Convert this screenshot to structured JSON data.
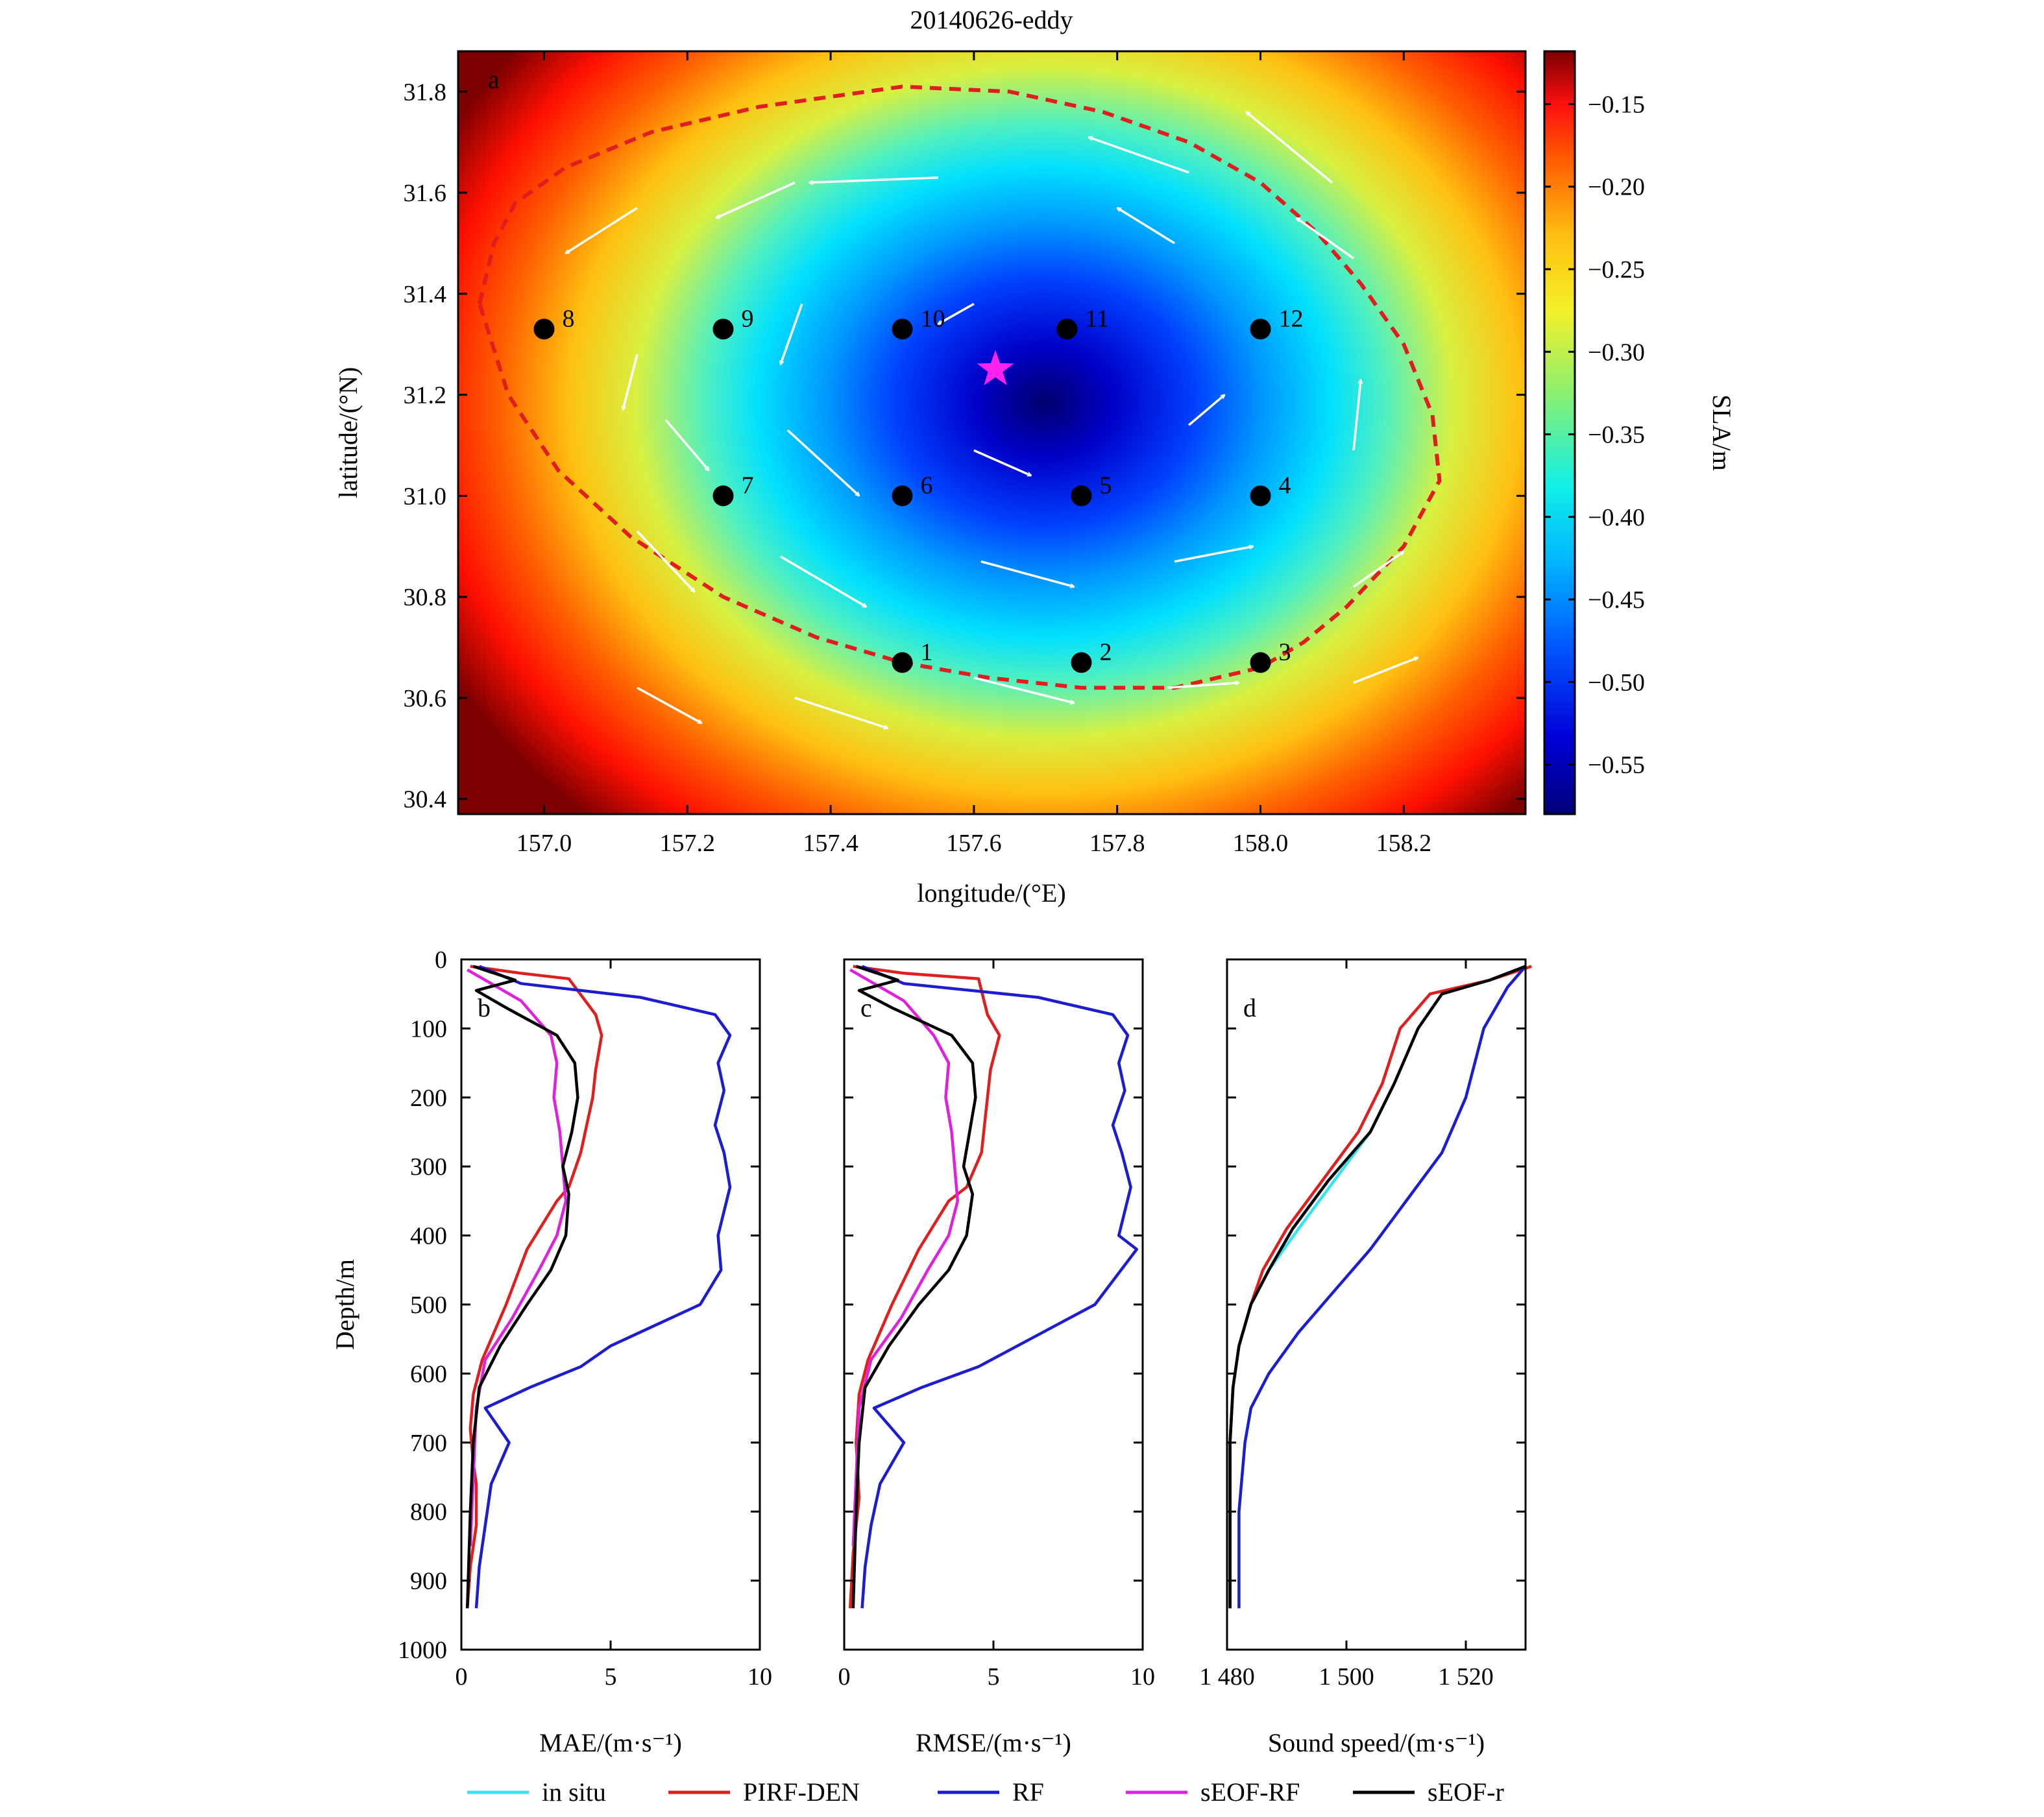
{
  "figure": {
    "title": "20140626-eddy"
  },
  "map": {
    "panel_label": "a",
    "xlabel": "longitude/(°E)",
    "ylabel": "latitude/(°N)",
    "xlim": [
      156.88,
      158.37
    ],
    "ylim": [
      30.37,
      31.88
    ],
    "xticks": [
      157.0,
      157.2,
      157.4,
      157.6,
      157.8,
      158.0,
      158.2
    ],
    "xtick_labels": [
      "157.0",
      "157.2",
      "157.4",
      "157.6",
      "157.8",
      "158.0",
      "158.2"
    ],
    "yticks": [
      30.4,
      30.6,
      30.8,
      31.0,
      31.2,
      31.4,
      31.6,
      31.8
    ],
    "ytick_labels": [
      "30.4",
      "30.6",
      "30.8",
      "31.0",
      "31.2",
      "31.4",
      "31.6",
      "31.8"
    ],
    "eddy_center": {
      "lon": 157.63,
      "lat": 31.25
    },
    "eddy_center_color": "#ff22ee",
    "eddy_boundary_color": "#e01e1e",
    "eddy_boundary": [
      [
        156.91,
        31.38
      ],
      [
        156.93,
        31.5
      ],
      [
        156.96,
        31.58
      ],
      [
        157.03,
        31.65
      ],
      [
        157.15,
        31.72
      ],
      [
        157.3,
        31.77
      ],
      [
        157.5,
        31.81
      ],
      [
        157.65,
        31.8
      ],
      [
        157.78,
        31.76
      ],
      [
        157.9,
        31.7
      ],
      [
        158.0,
        31.62
      ],
      [
        158.08,
        31.52
      ],
      [
        158.14,
        31.42
      ],
      [
        158.2,
        31.3
      ],
      [
        158.24,
        31.16
      ],
      [
        158.25,
        31.03
      ],
      [
        158.2,
        30.9
      ],
      [
        158.12,
        30.78
      ],
      [
        158.06,
        30.71
      ],
      [
        158.0,
        30.66
      ],
      [
        157.88,
        30.62
      ],
      [
        157.75,
        30.62
      ],
      [
        157.62,
        30.64
      ],
      [
        157.5,
        30.67
      ],
      [
        157.38,
        30.72
      ],
      [
        157.25,
        30.8
      ],
      [
        157.12,
        30.92
      ],
      [
        157.02,
        31.05
      ],
      [
        156.95,
        31.2
      ],
      [
        156.91,
        31.38
      ]
    ],
    "stations": [
      {
        "label": "1",
        "lon": 157.5,
        "lat": 30.67
      },
      {
        "label": "2",
        "lon": 157.75,
        "lat": 30.67
      },
      {
        "label": "3",
        "lon": 158.0,
        "lat": 30.67
      },
      {
        "label": "4",
        "lon": 158.0,
        "lat": 31.0
      },
      {
        "label": "5",
        "lon": 157.75,
        "lat": 31.0
      },
      {
        "label": "6",
        "lon": 157.5,
        "lat": 31.0
      },
      {
        "label": "7",
        "lon": 157.25,
        "lat": 31.0
      },
      {
        "label": "8",
        "lon": 157.0,
        "lat": 31.33
      },
      {
        "label": "9",
        "lon": 157.25,
        "lat": 31.33
      },
      {
        "label": "10",
        "lon": 157.5,
        "lat": 31.33
      },
      {
        "label": "11",
        "lon": 157.73,
        "lat": 31.33
      },
      {
        "label": "12",
        "lon": 158.0,
        "lat": 31.33
      }
    ],
    "velocity_arrows": [
      [
        157.55,
        31.63,
        157.37,
        31.62
      ],
      [
        157.35,
        31.62,
        157.24,
        31.55
      ],
      [
        157.13,
        31.57,
        157.03,
        31.48
      ],
      [
        157.13,
        31.28,
        157.11,
        31.17
      ],
      [
        157.17,
        31.15,
        157.23,
        31.05
      ],
      [
        157.13,
        30.93,
        157.21,
        30.81
      ],
      [
        157.13,
        30.62,
        157.22,
        30.55
      ],
      [
        157.35,
        30.6,
        157.48,
        30.54
      ],
      [
        157.33,
        30.88,
        157.45,
        30.78
      ],
      [
        157.34,
        31.13,
        157.44,
        31.0
      ],
      [
        157.36,
        31.38,
        157.33,
        31.26
      ],
      [
        157.6,
        31.38,
        157.55,
        31.34
      ],
      [
        157.9,
        31.64,
        157.76,
        31.71
      ],
      [
        158.1,
        31.62,
        157.98,
        31.76
      ],
      [
        158.13,
        31.47,
        158.05,
        31.55
      ],
      [
        158.13,
        31.09,
        158.14,
        31.23
      ],
      [
        157.9,
        31.14,
        157.95,
        31.2
      ],
      [
        157.88,
        31.5,
        157.8,
        31.57
      ],
      [
        157.6,
        31.09,
        157.68,
        31.04
      ],
      [
        157.61,
        30.87,
        157.74,
        30.82
      ],
      [
        157.88,
        30.87,
        157.99,
        30.9
      ],
      [
        158.13,
        30.82,
        158.2,
        30.89
      ],
      [
        158.13,
        30.63,
        158.22,
        30.68
      ],
      [
        157.87,
        30.62,
        157.97,
        30.63
      ],
      [
        157.6,
        30.64,
        157.74,
        30.59
      ]
    ]
  },
  "colorbar": {
    "label": "SLA/m",
    "vmin": -0.58,
    "vmax": -0.118,
    "ticks": [
      -0.55,
      -0.5,
      -0.45,
      -0.4,
      -0.35,
      -0.3,
      -0.25,
      -0.2,
      -0.15
    ],
    "tick_labels": [
      "−0.55",
      "−0.50",
      "−0.45",
      "−0.40",
      "−0.35",
      "−0.30",
      "−0.25",
      "−0.20",
      "−0.15"
    ]
  },
  "chart_data": [
    {
      "type": "line",
      "panel_label": "b",
      "xlabel": "MAE/(m·s⁻¹)",
      "ylabel": "Depth/m",
      "xlim": [
        0,
        10
      ],
      "ylim": [
        0,
        1000
      ],
      "xticks": [
        0,
        5,
        10
      ],
      "xtick_labels": [
        "0",
        "5",
        "10"
      ],
      "yticks": [
        0,
        100,
        200,
        300,
        400,
        500,
        600,
        700,
        800,
        900,
        1000
      ],
      "ytick_labels": [
        "0",
        "100",
        "200",
        "300",
        "400",
        "500",
        "600",
        "700",
        "800",
        "900",
        "1000"
      ],
      "series": [
        {
          "name": "PIRF-DEN",
          "color": "#e01e1e",
          "x": [
            0.3,
            2.0,
            3.6,
            4.5,
            4.7,
            4.5,
            4.4,
            4.0,
            3.6,
            3.2,
            2.2,
            1.5,
            0.7,
            0.4,
            0.3,
            0.4,
            0.5,
            0.5,
            0.3,
            0.2
          ],
          "depth": [
            10,
            20,
            28,
            80,
            110,
            160,
            200,
            280,
            330,
            350,
            420,
            500,
            580,
            630,
            680,
            730,
            760,
            820,
            880,
            940
          ]
        },
        {
          "name": "RF",
          "color": "#1c1cd0",
          "x": [
            0.6,
            2.0,
            6.0,
            8.5,
            9.0,
            8.6,
            8.8,
            8.5,
            8.8,
            9.0,
            8.6,
            8.7,
            8.0,
            5.0,
            4.0,
            2.3,
            0.8,
            1.6,
            1.0,
            0.8,
            0.6,
            0.5
          ],
          "depth": [
            10,
            35,
            55,
            80,
            110,
            150,
            190,
            240,
            280,
            330,
            400,
            450,
            500,
            560,
            590,
            620,
            650,
            700,
            760,
            820,
            880,
            940
          ]
        },
        {
          "name": "sEOF-RF",
          "color": "#e020e0",
          "x": [
            0.2,
            1.0,
            2.0,
            3.0,
            3.2,
            3.1,
            3.3,
            3.4,
            3.5,
            3.2,
            2.6,
            1.7,
            0.8,
            0.5,
            0.4,
            0.3
          ],
          "depth": [
            15,
            35,
            60,
            110,
            150,
            200,
            250,
            300,
            350,
            400,
            450,
            520,
            580,
            650,
            750,
            850
          ]
        },
        {
          "name": "sEOF-r",
          "color": "#000000",
          "x": [
            0.4,
            1.8,
            0.5,
            1.5,
            3.2,
            3.8,
            3.9,
            3.7,
            3.4,
            3.6,
            3.5,
            3.0,
            2.2,
            1.3,
            0.6,
            0.4,
            0.3,
            0.2
          ],
          "depth": [
            10,
            30,
            45,
            70,
            110,
            150,
            200,
            250,
            300,
            340,
            400,
            450,
            500,
            560,
            620,
            700,
            800,
            940
          ]
        },
        {
          "name": "in situ",
          "color": "#33e6ee",
          "x": [],
          "depth": []
        }
      ]
    },
    {
      "type": "line",
      "panel_label": "c",
      "xlabel": "RMSE/(m·s⁻¹)",
      "xlim": [
        0,
        10
      ],
      "ylim": [
        0,
        1000
      ],
      "xticks": [
        0,
        5,
        10
      ],
      "xtick_labels": [
        "0",
        "5",
        "10"
      ],
      "series": [
        {
          "name": "PIRF-DEN",
          "color": "#e01e1e",
          "x": [
            0.3,
            2.0,
            4.5,
            4.8,
            5.2,
            4.9,
            4.8,
            4.6,
            4.1,
            3.5,
            2.5,
            1.6,
            0.8,
            0.5,
            0.4,
            0.5,
            0.3,
            0.2
          ],
          "depth": [
            10,
            20,
            28,
            80,
            110,
            160,
            200,
            280,
            330,
            350,
            420,
            500,
            580,
            630,
            700,
            780,
            860,
            940
          ]
        },
        {
          "name": "RF",
          "color": "#1c1cd0",
          "x": [
            0.6,
            2.0,
            6.5,
            9.0,
            9.5,
            9.2,
            9.4,
            9.0,
            9.3,
            9.6,
            9.2,
            9.8,
            8.4,
            5.8,
            4.5,
            2.6,
            1.0,
            2.0,
            1.2,
            0.9,
            0.7,
            0.6
          ],
          "depth": [
            10,
            35,
            55,
            80,
            110,
            150,
            190,
            240,
            280,
            330,
            400,
            420,
            500,
            560,
            590,
            620,
            650,
            700,
            760,
            820,
            880,
            940
          ]
        },
        {
          "name": "sEOF-RF",
          "color": "#e020e0",
          "x": [
            0.2,
            1.0,
            2.0,
            3.0,
            3.5,
            3.4,
            3.6,
            3.7,
            3.8,
            3.5,
            2.8,
            1.9,
            0.9,
            0.5,
            0.4,
            0.3
          ],
          "depth": [
            15,
            35,
            60,
            110,
            150,
            200,
            250,
            300,
            350,
            400,
            450,
            520,
            580,
            650,
            750,
            850
          ]
        },
        {
          "name": "sEOF-r",
          "color": "#000000",
          "x": [
            0.4,
            1.8,
            0.5,
            1.6,
            3.6,
            4.3,
            4.4,
            4.2,
            4.0,
            4.3,
            4.1,
            3.5,
            2.5,
            1.5,
            0.7,
            0.5,
            0.4,
            0.3
          ],
          "depth": [
            10,
            30,
            45,
            70,
            110,
            150,
            200,
            250,
            300,
            340,
            400,
            450,
            500,
            560,
            620,
            700,
            800,
            940
          ]
        },
        {
          "name": "in situ",
          "color": "#33e6ee",
          "x": [],
          "depth": []
        }
      ]
    },
    {
      "type": "line",
      "panel_label": "d",
      "xlabel": "Sound speed/(m·s⁻¹)",
      "xlim": [
        1480,
        1530
      ],
      "ylim": [
        0,
        1000
      ],
      "xticks": [
        1480,
        1500,
        1520
      ],
      "xtick_labels": [
        "1 480",
        "1 500",
        "1 520"
      ],
      "series": [
        {
          "name": "in situ",
          "color": "#33e6ee",
          "x": [
            1530,
            1524,
            1516,
            1512,
            1508,
            1504,
            1498,
            1492,
            1487,
            1484,
            1482,
            1481,
            1480.5,
            1480.5
          ],
          "depth": [
            10,
            30,
            50,
            100,
            180,
            250,
            320,
            390,
            450,
            500,
            560,
            620,
            700,
            940
          ]
        },
        {
          "name": "PIRF-DEN",
          "color": "#e01e1e",
          "x": [
            1531,
            1524,
            1514,
            1509,
            1506,
            1502,
            1496,
            1490,
            1486,
            1484,
            1482,
            1481,
            1480.5,
            1480.5
          ],
          "depth": [
            10,
            30,
            50,
            100,
            180,
            250,
            320,
            390,
            450,
            500,
            560,
            620,
            700,
            940
          ]
        },
        {
          "name": "RF",
          "color": "#1c1cd0",
          "x": [
            1530,
            1527,
            1523,
            1520,
            1516,
            1510,
            1504,
            1498,
            1492,
            1487,
            1484,
            1483,
            1482,
            1482
          ],
          "depth": [
            10,
            40,
            100,
            200,
            280,
            350,
            420,
            480,
            540,
            600,
            650,
            700,
            800,
            940
          ]
        },
        {
          "name": "sEOF-r",
          "color": "#000000",
          "x": [
            1530,
            1524,
            1516,
            1512,
            1508,
            1504,
            1497,
            1491,
            1487,
            1484,
            1482,
            1481,
            1480.5,
            1480.5
          ],
          "depth": [
            10,
            30,
            50,
            100,
            180,
            250,
            320,
            390,
            450,
            500,
            560,
            620,
            700,
            940
          ]
        },
        {
          "name": "sEOF-RF",
          "color": "#e020e0",
          "x": [],
          "depth": []
        }
      ]
    }
  ],
  "legend": [
    {
      "name": "in situ",
      "color": "#33e6ee"
    },
    {
      "name": "PIRF-DEN",
      "color": "#e01e1e"
    },
    {
      "name": "RF",
      "color": "#1c1cd0"
    },
    {
      "name": "sEOF-RF",
      "color": "#e020e0"
    },
    {
      "name": "sEOF-r",
      "color": "#000000"
    }
  ]
}
